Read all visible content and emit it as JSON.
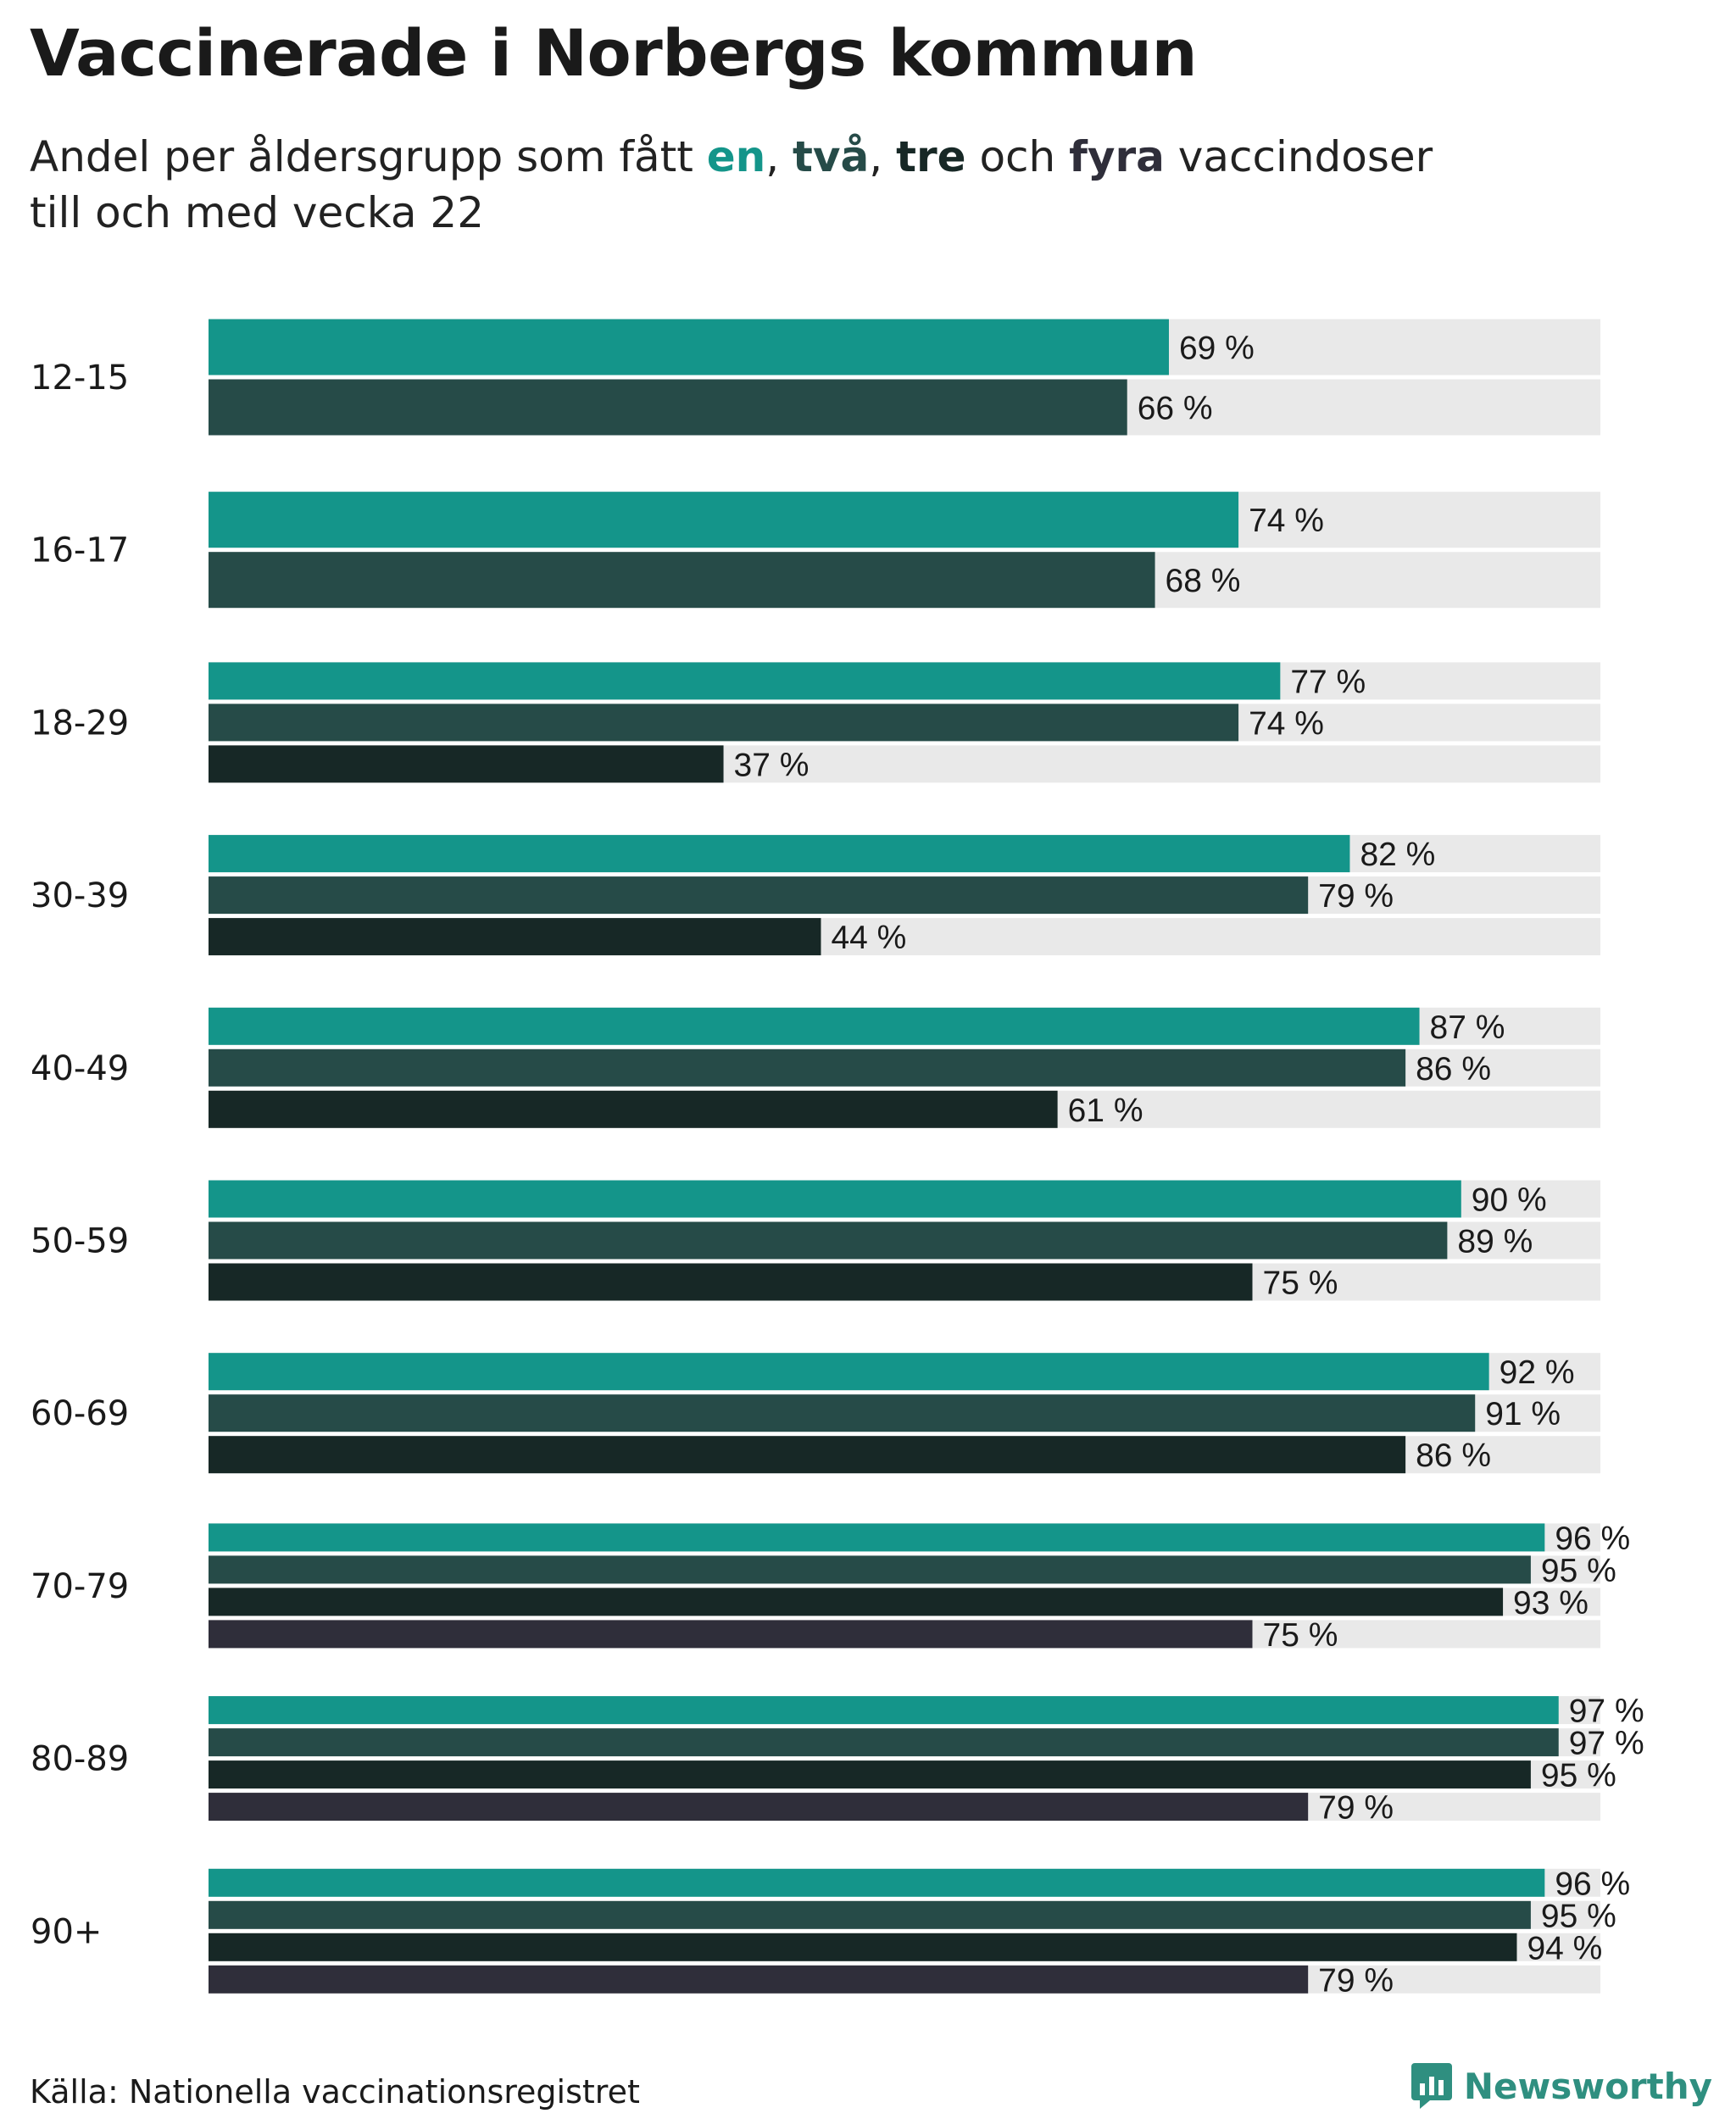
{
  "title": "Vaccinerade i Norbergs kommun",
  "subtitle": {
    "prefix": "Andel per åldersgrupp som fått ",
    "kw1": "en",
    "sep1": ", ",
    "kw2": "två",
    "sep2": ", ",
    "kw3": "tre",
    "sep3": " och ",
    "kw4": "fyra",
    "suffix_line1": " vaccindoser",
    "line2": "till och med vecka 22"
  },
  "colors": {
    "en": "#14958a",
    "tva": "#264b48",
    "tre": "#172826",
    "fyra": "#2f2e3a",
    "track": "#e9e9e9",
    "brand": "#2f8f80"
  },
  "chart_data": {
    "type": "bar",
    "orientation": "horizontal",
    "title": "Vaccinerade i Norbergs kommun",
    "xlim": [
      0,
      100
    ],
    "value_suffix": " %",
    "categories": [
      "12-15",
      "16-17",
      "18-29",
      "30-39",
      "40-49",
      "50-59",
      "60-69",
      "70-79",
      "80-89",
      "90+"
    ],
    "series": [
      {
        "name": "en",
        "color": "#14958a",
        "values": [
          69,
          74,
          77,
          82,
          87,
          90,
          92,
          96,
          97,
          96
        ]
      },
      {
        "name": "två",
        "color": "#264b48",
        "values": [
          66,
          68,
          74,
          79,
          86,
          89,
          91,
          95,
          97,
          95
        ]
      },
      {
        "name": "tre",
        "color": "#172826",
        "values": [
          null,
          null,
          37,
          44,
          61,
          75,
          86,
          93,
          95,
          94
        ]
      },
      {
        "name": "fyra",
        "color": "#2f2e3a",
        "values": [
          null,
          null,
          null,
          null,
          null,
          null,
          null,
          75,
          79,
          79
        ]
      }
    ],
    "grid": false,
    "legend": "inline in subtitle"
  },
  "footer": {
    "source": "Källa: Nationella vaccinationsregistret",
    "brand": "Newsworthy"
  }
}
